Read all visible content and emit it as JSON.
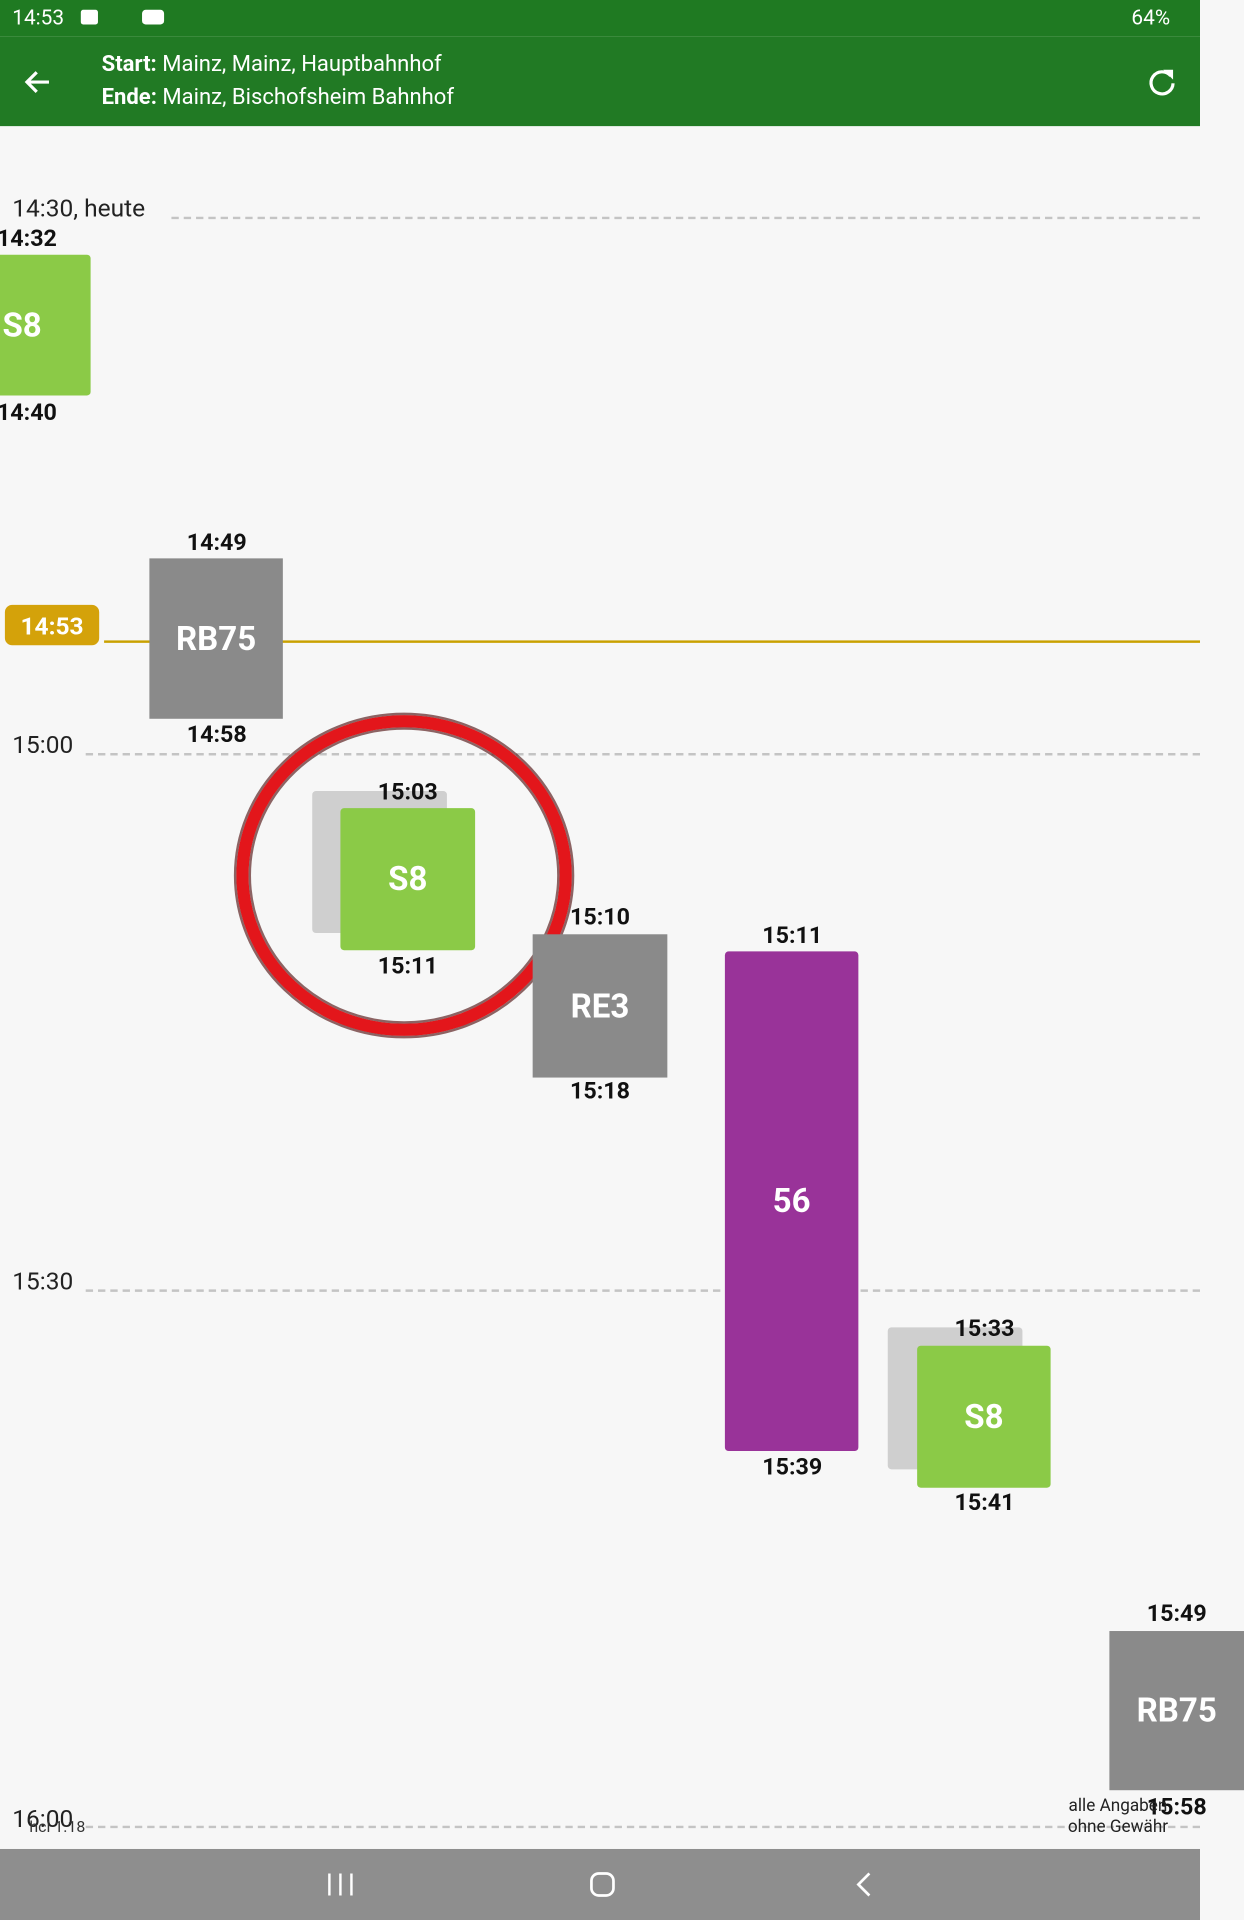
{
  "status": {
    "time": "14:53",
    "battery": "64%"
  },
  "header": {
    "start_label": "Start:",
    "start": "Mainz, Mainz, Hauptbahnhof",
    "end_label": "Ende:",
    "end": "Mainz, Bischofsheim Bahnhof"
  },
  "timeline": {
    "marks": [
      "14:30, heute",
      "15:00",
      "15:30",
      "16:00"
    ],
    "now": "14:53"
  },
  "trips": [
    {
      "line": "S8",
      "dep": "14:32",
      "arr": "14:40"
    },
    {
      "line": "RB75",
      "dep": "14:49",
      "arr": "14:58"
    },
    {
      "line": "S8",
      "dep": "15:03",
      "arr": "15:11"
    },
    {
      "line": "RE3",
      "dep": "15:10",
      "arr": "15:18"
    },
    {
      "line": "56",
      "dep": "15:11",
      "arr": "15:39"
    },
    {
      "line": "S8",
      "dep": "15:33",
      "arr": "15:41"
    },
    {
      "line": "RB75",
      "dep": "15:49",
      "arr": "15:58"
    }
  ],
  "footer": {
    "version": "hci 1.18",
    "disclaimer_1": "alle Angaben",
    "disclaimer_2": "ohne Gewähr"
  }
}
